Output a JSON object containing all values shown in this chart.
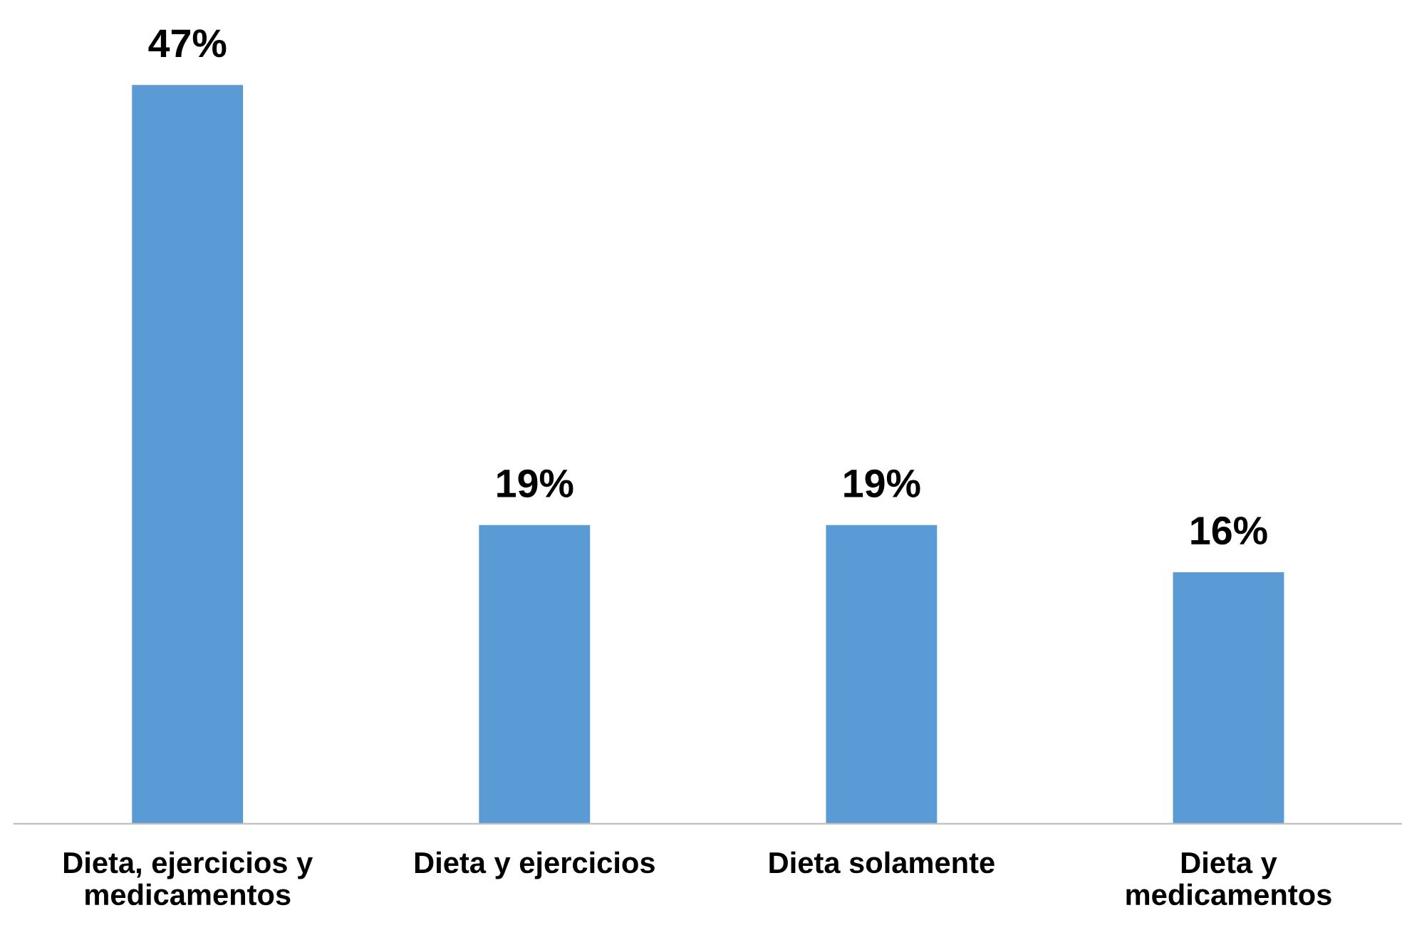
{
  "chart_data": {
    "type": "bar",
    "categories": [
      "Dieta, ejercicios y\nmedicamentos",
      "Dieta y ejercicios",
      "Dieta solamente",
      "Dieta y\nmedicamentos"
    ],
    "values": [
      47,
      19,
      19,
      16
    ],
    "value_labels": [
      "47%",
      "19%",
      "19%",
      "16%"
    ],
    "color": "#5b9bd5",
    "grid": false,
    "legend": false
  }
}
